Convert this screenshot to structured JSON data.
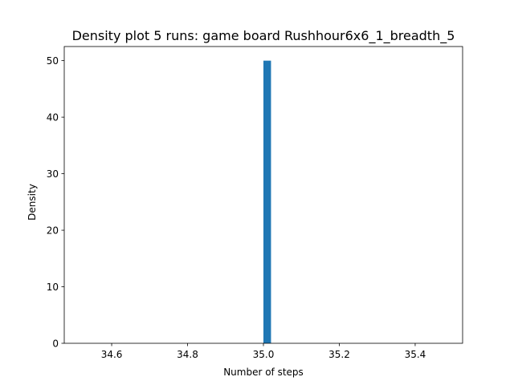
{
  "chart_data": {
    "type": "bar",
    "title": "Density plot 5 runs: game board Rushhour6x6_1_breadth_5",
    "xlabel": "Number of steps",
    "ylabel": "Density",
    "xlim": [
      34.475,
      35.525
    ],
    "ylim": [
      0,
      52.5
    ],
    "x_ticks": [
      34.6,
      34.8,
      35.0,
      35.2,
      35.4
    ],
    "x_tick_labels": [
      "34.6",
      "34.8",
      "35.0",
      "35.2",
      "35.4"
    ],
    "y_ticks": [
      0,
      10,
      20,
      30,
      40,
      50
    ],
    "y_tick_labels": [
      "0",
      "10",
      "20",
      "30",
      "40",
      "50"
    ],
    "bars": [
      {
        "x_start": 35.0,
        "x_end": 35.02,
        "value": 50
      }
    ],
    "bar_color": "#1f77b4",
    "grid": false,
    "legend": "none"
  }
}
